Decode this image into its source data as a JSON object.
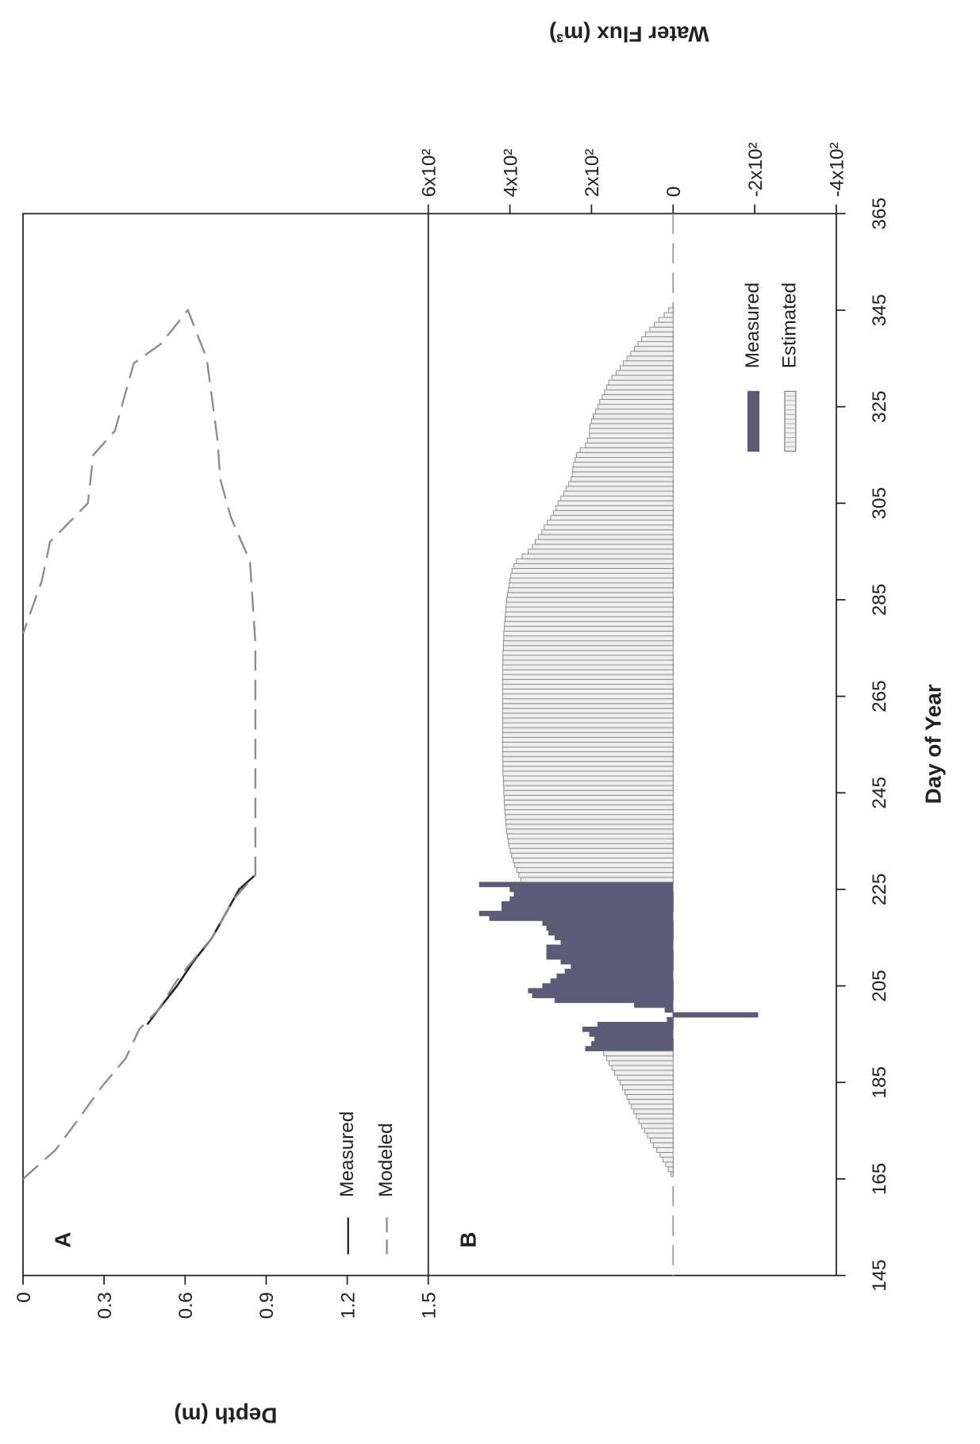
{
  "chart_data": [
    {
      "type": "line",
      "panel_label": "A",
      "y_label": "Depth (m)",
      "xlim": [
        145,
        365
      ],
      "ylim": [
        0,
        1.5
      ],
      "yticks": [
        0,
        0.3,
        0.6,
        0.9,
        1.2,
        1.5
      ],
      "series": [
        {
          "name": "Measured",
          "color": "#222222",
          "style": "solid",
          "x": [
            197,
            200,
            205,
            210,
            215,
            220,
            225,
            228
          ],
          "values": [
            0.46,
            0.5,
            0.57,
            0.63,
            0.7,
            0.75,
            0.8,
            0.86
          ]
        },
        {
          "name": "Modeled",
          "color": "#8a8a8a",
          "style": "dashed",
          "x": [
            165,
            171,
            177,
            184,
            190,
            196,
            200,
            207,
            215,
            223,
            228,
            241,
            260,
            276,
            293,
            302,
            310,
            318,
            335,
            345,
            338,
            334,
            320,
            315,
            305,
            297,
            289,
            278
          ],
          "values": [
            0,
            0.12,
            0.2,
            0.29,
            0.38,
            0.43,
            0.5,
            0.58,
            0.7,
            0.78,
            0.86,
            0.86,
            0.86,
            0.86,
            0.84,
            0.77,
            0.73,
            0.72,
            0.68,
            0.61,
            0.51,
            0.41,
            0.34,
            0.26,
            0.24,
            0.1,
            0.07,
            0
          ]
        }
      ]
    },
    {
      "type": "bar",
      "panel_label": "B",
      "y_label": "Water Flux (m³)",
      "x_label": "Day of Year",
      "xlim": [
        145,
        365
      ],
      "xticks": [
        145,
        165,
        185,
        205,
        225,
        245,
        265,
        285,
        305,
        325,
        345,
        365
      ],
      "ylim": [
        -400,
        600
      ],
      "yticks": [
        {
          "value": 600,
          "label": "6x10²"
        },
        {
          "value": 400,
          "label": "4x10²"
        },
        {
          "value": 200,
          "label": "2x10²"
        },
        0,
        {
          "value": -200,
          "label": "-2x10²"
        },
        {
          "value": -400,
          "label": "-4x10²"
        }
      ],
      "series": [
        {
          "name": "Measured",
          "color": "#5b5b78",
          "x": [
            192,
            193,
            194,
            195,
            196,
            197,
            198,
            199,
            200,
            201,
            202,
            203,
            204,
            205,
            206,
            207,
            208,
            209,
            210,
            211,
            212,
            213,
            214,
            215,
            216,
            217,
            218,
            219,
            220,
            221,
            222,
            223,
            224,
            225,
            226
          ],
          "values": [
            215,
            200,
            192,
            205,
            222,
            185,
            15,
            -208,
            20,
            95,
            290,
            345,
            355,
            320,
            300,
            285,
            265,
            250,
            275,
            310,
            310,
            310,
            275,
            290,
            305,
            310,
            320,
            450,
            475,
            420,
            420,
            400,
            390,
            400,
            475
          ]
        },
        {
          "name": "Estimated",
          "color": "#efefef",
          "x": [
            165,
            166,
            167,
            168,
            169,
            170,
            171,
            172,
            173,
            174,
            175,
            176,
            177,
            178,
            179,
            180,
            181,
            182,
            183,
            184,
            185,
            186,
            187,
            188,
            189,
            190,
            191,
            227,
            228,
            229,
            230,
            231,
            232,
            233,
            234,
            235,
            236,
            237,
            238,
            239,
            240,
            241,
            242,
            243,
            244,
            245,
            246,
            247,
            248,
            249,
            250,
            251,
            252,
            253,
            254,
            255,
            256,
            257,
            258,
            259,
            260,
            261,
            262,
            263,
            264,
            265,
            266,
            267,
            268,
            269,
            270,
            271,
            272,
            273,
            274,
            275,
            276,
            277,
            278,
            279,
            280,
            281,
            282,
            283,
            284,
            285,
            286,
            287,
            288,
            289,
            290,
            291,
            292,
            293,
            294,
            295,
            296,
            297,
            298,
            299,
            300,
            301,
            302,
            303,
            304,
            305,
            306,
            307,
            308,
            309,
            310,
            311,
            312,
            313,
            314,
            315,
            316,
            317,
            318,
            319,
            320,
            321,
            322,
            323,
            324,
            325,
            326,
            327,
            328,
            329,
            330,
            331,
            332,
            333,
            334,
            335,
            336,
            337,
            338,
            339,
            340,
            341,
            342,
            343,
            344,
            345
          ],
          "values": [
            0,
            5,
            12,
            18,
            25,
            32,
            40,
            48,
            56,
            63,
            70,
            77,
            84,
            90,
            96,
            102,
            108,
            113,
            118,
            124,
            130,
            136,
            143,
            150,
            157,
            163,
            170,
            373,
            378,
            383,
            388,
            392,
            396,
            399,
            402,
            404,
            406,
            408,
            409,
            410,
            411,
            412,
            413,
            414,
            414,
            415,
            415,
            416,
            416,
            417,
            417,
            417,
            418,
            418,
            418,
            418,
            418,
            418,
            418,
            418,
            418,
            418,
            418,
            418,
            418,
            418,
            418,
            418,
            418,
            418,
            418,
            418,
            417,
            417,
            417,
            416,
            416,
            415,
            415,
            414,
            413,
            412,
            411,
            410,
            409,
            408,
            406,
            404,
            402,
            400,
            398,
            395,
            390,
            384,
            370,
            355,
            345,
            338,
            330,
            322,
            316,
            308,
            300,
            293,
            287,
            282,
            275,
            268,
            262,
            256,
            250,
            247,
            246,
            244,
            240,
            237,
            228,
            215,
            210,
            205,
            205,
            204,
            200,
            196,
            190,
            184,
            180,
            174,
            168,
            163,
            158,
            150,
            140,
            130,
            122,
            113,
            104,
            95,
            86,
            77,
            68,
            57,
            46,
            35,
            22,
            11
          ]
        }
      ]
    }
  ]
}
